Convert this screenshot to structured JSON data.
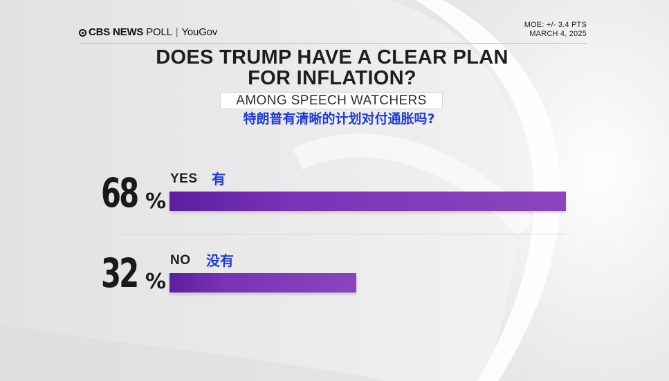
{
  "header": {
    "brand_main": "CBS NEWS",
    "brand_poll": "POLL",
    "brand_partner": "YouGov",
    "moe_line": "MOE: +/- 3.4 PTS",
    "date_line": "MARCH 4, 2025"
  },
  "title_line1": "DOES TRUMP HAVE A CLEAR PLAN",
  "title_line2": "FOR INFLATION?",
  "subtitle": "AMONG SPEECH WATCHERS",
  "translated_title": "特朗普有清晰的计划对付通胀吗?",
  "chart_data": {
    "type": "bar",
    "orientation": "horizontal",
    "title": "DOES TRUMP HAVE A CLEAR PLAN FOR INFLATION?",
    "subtitle": "AMONG SPEECH WATCHERS",
    "categories": [
      "YES",
      "NO"
    ],
    "category_translations": [
      "有",
      "没有"
    ],
    "values": [
      68,
      32
    ],
    "value_labels": [
      "68",
      "32"
    ],
    "unit": "%",
    "xlim": [
      0,
      100
    ],
    "grid": false,
    "bar_color": "#7b35b8"
  }
}
